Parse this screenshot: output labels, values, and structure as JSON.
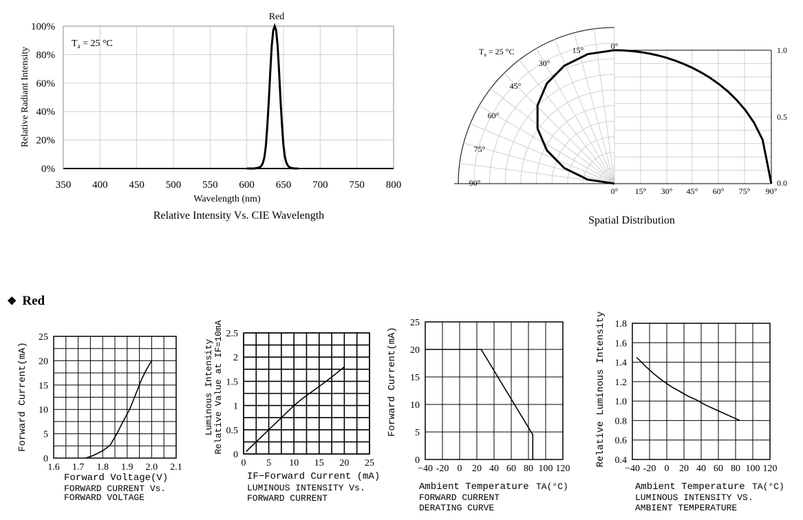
{
  "section_heading": {
    "symbol": "❖",
    "label": "Red"
  },
  "chart_data": [
    {
      "id": "spectrum",
      "type": "line",
      "title": "Relative Intensity Vs. CIE Wavelength",
      "series_label": "Red",
      "annotation": {
        "main": "T",
        "sub": "a",
        "rest": " = 25 °C"
      },
      "xlabel": "Wavelength (nm)",
      "ylabel": "Relative Radiant Intensity",
      "xlim": [
        350,
        800
      ],
      "ylim": [
        0,
        100
      ],
      "xticks": [
        "350",
        "400",
        "450",
        "500",
        "550",
        "600",
        "650",
        "700",
        "750",
        "800"
      ],
      "yticks": [
        "0%",
        "20%",
        "40%",
        "60%",
        "80%",
        "100%"
      ],
      "grid": true,
      "series": [
        {
          "x": [
            600,
            610,
            615,
            618,
            620,
            622,
            624,
            626,
            628,
            630,
            632,
            634,
            636,
            638,
            640,
            642,
            644,
            646,
            648,
            650,
            652,
            654,
            656,
            658,
            660,
            665,
            670
          ],
          "y": [
            0,
            0,
            0.5,
            1,
            2,
            4,
            8,
            16,
            30,
            48,
            68,
            86,
            97,
            100,
            97,
            86,
            68,
            48,
            30,
            16,
            8,
            4,
            2,
            1,
            0.5,
            0,
            0
          ]
        }
      ]
    },
    {
      "id": "spatial",
      "type": "polar",
      "title": "Spatial Distribution",
      "annotation": {
        "main": "T",
        "sub": "a",
        "rest": " = 25 °C"
      },
      "angle_labels": [
        "0°",
        "15°",
        "30°",
        "45°",
        "60°",
        "75°",
        "90°"
      ],
      "bottom_labels": [
        "0°",
        "15°",
        "30°",
        "45°",
        "60°",
        "75°",
        "90°"
      ],
      "right_labels": [
        "1.0",
        "0.5",
        "0.0"
      ],
      "series": [
        {
          "angle_deg": [
            0,
            10,
            20,
            30,
            40,
            50,
            60,
            70,
            80,
            90
          ],
          "relative_intensity": [
            1.0,
            0.985,
            0.94,
            0.866,
            0.766,
            0.643,
            0.5,
            0.342,
            0.174,
            0.0
          ]
        }
      ]
    },
    {
      "id": "iv",
      "type": "line",
      "title_lines": [
        "FORWARD CURRENT Vs.",
        "FORWARD VOLTAGE"
      ],
      "xlabel": "Forward Voltage(V)",
      "ylabel": "Forward Current(mA)",
      "xlim": [
        1.6,
        2.1
      ],
      "ylim": [
        0,
        25
      ],
      "xticks": [
        "1.6",
        "1.7",
        "1.8",
        "1.9",
        "2.0",
        "2.1"
      ],
      "yticks": [
        "0",
        "5",
        "10",
        "15",
        "20",
        "25"
      ],
      "grid": true,
      "series": [
        {
          "x": [
            1.73,
            1.76,
            1.8,
            1.83,
            1.86,
            1.88,
            1.91,
            1.93,
            1.96,
            1.98,
            2.0
          ],
          "y": [
            0,
            0.5,
            1.5,
            2.6,
            5.2,
            7.2,
            10,
            12.5,
            16.3,
            18.3,
            20
          ]
        }
      ]
    },
    {
      "id": "lum_if",
      "type": "line",
      "title_lines": [
        "LUMINOUS INTENSITY Vs.",
        "FORWARD CURRENT"
      ],
      "xlabel": "IF−Forward Current (mA)",
      "ylabel_lines": [
        "Luminous Intensity",
        "Relative Value at IF=10mA"
      ],
      "xlim": [
        0,
        25
      ],
      "ylim": [
        0,
        2.5
      ],
      "xticks": [
        "0",
        "5",
        "10",
        "15",
        "20",
        "25"
      ],
      "yticks": [
        "0",
        "0.5",
        "1",
        "1.5",
        "2",
        "2.5"
      ],
      "grid": true,
      "series": [
        {
          "x": [
            0.5,
            2,
            4,
            6,
            8,
            10,
            12,
            14,
            16,
            18,
            20
          ],
          "y": [
            0.05,
            0.2,
            0.4,
            0.6,
            0.8,
            1.0,
            1.17,
            1.32,
            1.47,
            1.63,
            1.8
          ]
        }
      ]
    },
    {
      "id": "derating",
      "type": "line",
      "title_lines": [
        "FORWARD CURRENT",
        "DERATING CURVE"
      ],
      "xlabel": "Ambient Temperature",
      "xlabel_unit": "TA(°C)",
      "ylabel": "Forward Current(mA)",
      "xlim": [
        -40,
        120
      ],
      "ylim": [
        0,
        25
      ],
      "xticks": [
        "−40",
        "-20",
        "0",
        "20",
        "40",
        "60",
        "80",
        "100",
        "120"
      ],
      "yticks": [
        "0",
        "5",
        "10",
        "15",
        "20",
        "25"
      ],
      "grid": true,
      "series": [
        {
          "x": [
            -40,
            25,
            85,
            85
          ],
          "y": [
            20,
            20,
            4.5,
            0
          ]
        }
      ]
    },
    {
      "id": "lum_ta",
      "type": "line",
      "title_lines": [
        "LUMINOUS INTENSITY VS.",
        "AMBIENT TEMPERATURE"
      ],
      "xlabel": "Ambient Temperature",
      "xlabel_unit": "TA(°C)",
      "ylabel": "Relative Luminous Intensity",
      "xlim": [
        -40,
        120
      ],
      "ylim": [
        0.4,
        1.8
      ],
      "xticks": [
        "−40",
        "-20",
        "0",
        "20",
        "40",
        "60",
        "80",
        "100",
        "120"
      ],
      "yticks": [
        "0.4",
        "0.6",
        "0.8",
        "1.0",
        "1.2",
        "1.4",
        "1.6",
        "1.8"
      ],
      "grid": true,
      "series": [
        {
          "x": [
            -35,
            -25,
            -15,
            -5,
            5,
            15,
            25,
            35,
            45,
            55,
            65,
            75,
            85
          ],
          "y": [
            1.45,
            1.36,
            1.28,
            1.21,
            1.15,
            1.1,
            1.05,
            1.01,
            0.96,
            0.92,
            0.88,
            0.84,
            0.8
          ]
        }
      ]
    }
  ]
}
